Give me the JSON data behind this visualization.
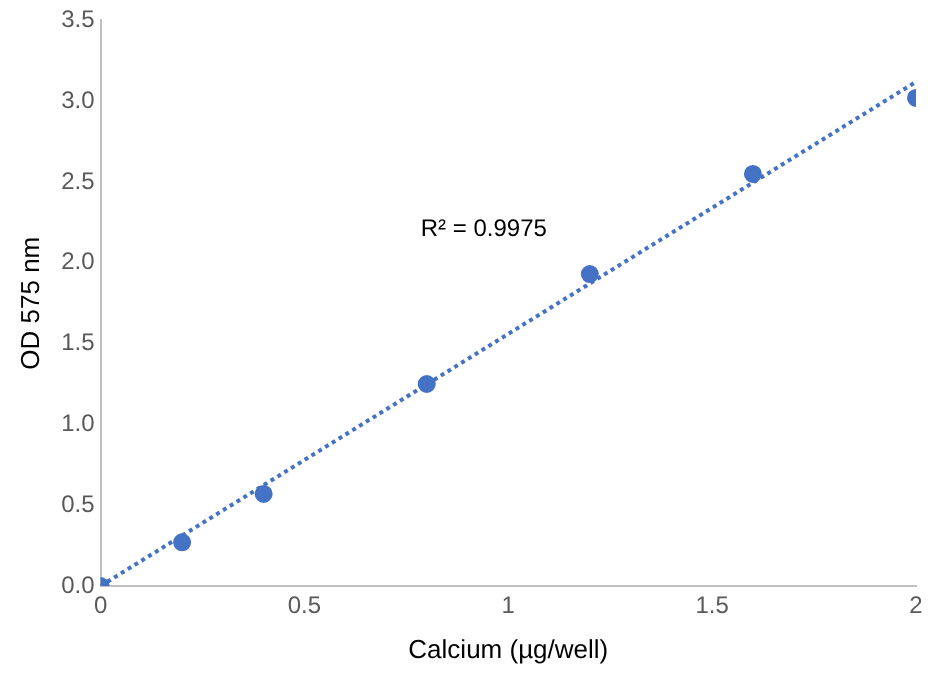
{
  "chart_data": {
    "type": "scatter",
    "xlabel": "Calcium (µg/well)",
    "ylabel": "OD 575 nm",
    "xlim": [
      0,
      2
    ],
    "xticks": [
      0,
      0.5,
      1,
      1.5,
      2
    ],
    "ylim": [
      0,
      3.5
    ],
    "yticks": [
      {
        "value": 0,
        "label": "0.0"
      },
      {
        "value": 0.5,
        "label": "0.5"
      },
      {
        "value": 1,
        "label": "1.0"
      },
      {
        "value": 1.5,
        "label": "1.5"
      },
      {
        "value": 2,
        "label": "2.0"
      },
      {
        "value": 2.5,
        "label": "2.5"
      },
      {
        "value": 3,
        "label": "3.0"
      },
      {
        "value": 3.5,
        "label": "3.5"
      }
    ],
    "grid": false,
    "legend": false,
    "series": [
      {
        "type": "scatter",
        "marker": "circle",
        "color": "#4472c4",
        "x": [
          0,
          0.2,
          0.4,
          0.8,
          1.2,
          1.6,
          2
        ],
        "values": [
          0,
          0.27,
          0.57,
          1.25,
          1.93,
          2.55,
          3.02
        ]
      },
      {
        "type": "line",
        "color": "#4472c4",
        "line_style": "dotted",
        "x": [
          0,
          2
        ],
        "values": [
          0,
          3.12
        ]
      }
    ],
    "annotations": [
      "R² = 0.9975"
    ]
  }
}
